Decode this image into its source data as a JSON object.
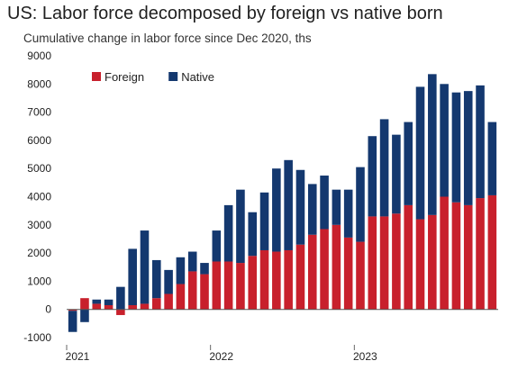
{
  "chart_data": {
    "type": "bar",
    "stacked": true,
    "title": "US: Labor force decomposed by foreign vs native born",
    "subtitle": "Cumulative change in labor force since Dec 2020, ths",
    "ylim": [
      -1000,
      9000
    ],
    "yticks": [
      -1000,
      0,
      1000,
      2000,
      3000,
      4000,
      5000,
      6000,
      7000,
      8000,
      9000
    ],
    "xticks": [
      {
        "label": "2021",
        "index": 0
      },
      {
        "label": "2022",
        "index": 12
      },
      {
        "label": "2023",
        "index": 24
      }
    ],
    "legend": "top-left",
    "grid": false,
    "categories": [
      "Jan 2021",
      "Feb 2021",
      "Mar 2021",
      "Apr 2021",
      "May 2021",
      "Jun 2021",
      "Jul 2021",
      "Aug 2021",
      "Sep 2021",
      "Oct 2021",
      "Nov 2021",
      "Dec 2021",
      "Jan 2022",
      "Feb 2022",
      "Mar 2022",
      "Apr 2022",
      "May 2022",
      "Jun 2022",
      "Jul 2022",
      "Aug 2022",
      "Sep 2022",
      "Oct 2022",
      "Nov 2022",
      "Dec 2022",
      "Jan 2023",
      "Feb 2023",
      "Mar 2023",
      "Apr 2023",
      "May 2023",
      "Jun 2023",
      "Jul 2023",
      "Aug 2023",
      "Sep 2023",
      "Oct 2023",
      "Nov 2023",
      "Dec 2023"
    ],
    "series": [
      {
        "name": "Foreign",
        "color": "#c8202c",
        "values": [
          -50,
          400,
          200,
          150,
          -200,
          150,
          200,
          400,
          550,
          900,
          1350,
          1250,
          1700,
          1700,
          1650,
          1900,
          2100,
          2050,
          2100,
          2300,
          2650,
          2850,
          3000,
          2550,
          2400,
          3300,
          3300,
          3400,
          3700,
          3200,
          3350,
          4000,
          3800,
          3700,
          3950,
          4050
        ]
      },
      {
        "name": "Native",
        "color": "#14386f",
        "values": [
          -750,
          -450,
          150,
          200,
          800,
          2000,
          2600,
          1350,
          850,
          950,
          700,
          400,
          1100,
          2000,
          2600,
          1550,
          2050,
          2950,
          3200,
          2650,
          1800,
          1900,
          1250,
          1700,
          2650,
          2850,
          3450,
          2800,
          2950,
          4700,
          5000,
          4000,
          3900,
          4050,
          4000,
          2600
        ]
      }
    ]
  }
}
